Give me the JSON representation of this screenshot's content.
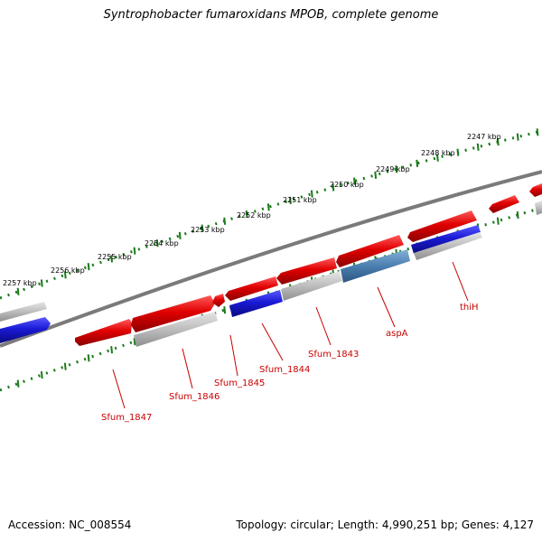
{
  "title": "Syntrophobacter fumaroxidans MPOB, complete genome",
  "accession": "Accession: NC_008554",
  "summary": "Topology: circular; Length: 4,990,251 bp; Genes: 4,127",
  "colors": {
    "forward": "#e00000",
    "reverse": "#1a1ad6",
    "other": "#b4b4b4",
    "selected": "#4a7fb0",
    "tick": "#1a7a1a",
    "backbone": "#7a7a7a",
    "label": "#c80000"
  },
  "ruler_labels": [
    "2257 kbp",
    "2256 kbp",
    "2255 kbp",
    "2254 kbp",
    "2253 kbp",
    "2252 kbp",
    "2251 kbp",
    "2250 kbp",
    "2249 kbp",
    "2248 kbp",
    "2247 kbp"
  ],
  "gene_labels": [
    "Sfum_1847",
    "Sfum_1846",
    "Sfum_1845",
    "Sfum_1844",
    "Sfum_1843",
    "aspA",
    "thiH"
  ]
}
